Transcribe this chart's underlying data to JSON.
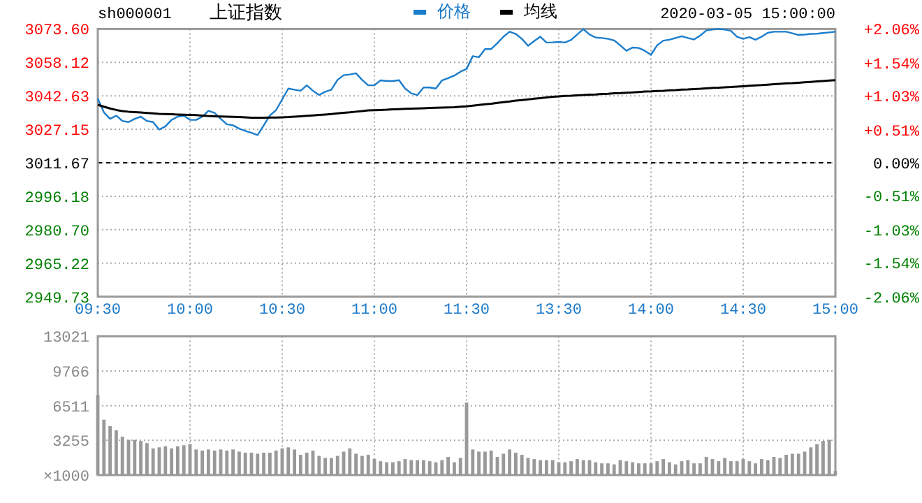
{
  "chart_data": [
    {
      "type": "line",
      "title": "上证指数",
      "subtitle": "sh000001",
      "annotations": [
        "2020-03-05 15:00:00"
      ],
      "legend": "top",
      "grid": true,
      "line_style": "solid",
      "categories": [
        "09:30",
        null,
        null,
        null,
        null,
        null,
        null,
        null,
        null,
        null,
        null,
        null,
        null,
        null,
        null,
        "10:00",
        null,
        null,
        null,
        null,
        null,
        null,
        null,
        null,
        null,
        null,
        null,
        null,
        null,
        null,
        "10:30",
        null,
        null,
        null,
        null,
        null,
        null,
        null,
        null,
        null,
        null,
        null,
        null,
        null,
        null,
        "11:00",
        null,
        null,
        null,
        null,
        null,
        null,
        null,
        null,
        null,
        null,
        null,
        null,
        null,
        null,
        "11:30",
        null,
        null,
        null,
        null,
        null,
        null,
        null,
        null,
        null,
        null,
        null,
        null,
        null,
        null,
        "13:30",
        null,
        null,
        null,
        null,
        null,
        null,
        null,
        null,
        null,
        null,
        null,
        null,
        null,
        null,
        "14:00",
        null,
        null,
        null,
        null,
        null,
        null,
        null,
        null,
        null,
        null,
        null,
        null,
        null,
        null,
        "14:30",
        null,
        null,
        null,
        null,
        null,
        null,
        null,
        null,
        null,
        null,
        null,
        null,
        null,
        null,
        "15:00"
      ],
      "ylim": [
        2949.73,
        3073.6
      ],
      "yticks": [
        2949.73,
        2965.22,
        {
          "value": 2980.7,
          "label": "2980.70"
        },
        2996.18,
        3011.67,
        3027.15,
        3042.63,
        3058.12,
        {
          "value": 3073.6,
          "label": "3073.60"
        }
      ],
      "y2lim": [
        -2.06,
        2.06
      ],
      "y2ticks": [
        {
          "value": -2.06,
          "label": "-2.06%"
        },
        {
          "value": -1.54,
          "label": "-1.54%"
        },
        {
          "value": -1.03,
          "label": "-1.03%"
        },
        {
          "value": -0.51,
          "label": "-0.51%"
        },
        {
          "value": 0,
          "label": "0.00%"
        },
        {
          "value": 0.51,
          "label": "+0.51%"
        },
        {
          "value": 1.03,
          "label": "+1.03%"
        },
        {
          "value": 1.54,
          "label": "+1.54%"
        },
        {
          "value": 2.06,
          "label": "+2.06%"
        }
      ],
      "ref_lines": [
        {
          "axis": "y",
          "value": 3011.67,
          "color": "#000000",
          "line_style": "dashed"
        }
      ],
      "series": [
        {
          "name": "价格",
          "color": "#1a7dcc",
          "values": [
            3041.3,
            3035.0,
            3032,
            3033.5,
            3031,
            3030.5,
            3032,
            3033,
            3031,
            3030.5,
            3027,
            3028.5,
            3031.5,
            3033,
            3033.5,
            3031.5,
            3031.5,
            3033,
            3035.7,
            3034.7,
            3032,
            3029.5,
            3029,
            3027.5,
            3026.4,
            3025.5,
            3024.5,
            3029,
            3033.5,
            3036,
            3041,
            3046,
            3045.5,
            3045,
            3047.5,
            3045,
            3043,
            3044.5,
            3045.5,
            3050,
            3052.2,
            3052.5,
            3053.1,
            3050,
            3047.5,
            3047.5,
            3049.8,
            3049.5,
            3049.5,
            3049.9,
            3046,
            3043.8,
            3043,
            3046.5,
            3046.5,
            3046,
            3049.8,
            3050.8,
            3052,
            3053.8,
            3055.1,
            3061,
            3060.5,
            3064.3,
            3064.3,
            3067,
            3070,
            3072.3,
            3071.3,
            3069,
            3065.8,
            3068,
            3070,
            3067.3,
            3067.4,
            3067.6,
            3067.3,
            3068.5,
            3071,
            3073.5,
            3071,
            3069.6,
            3069.4,
            3069,
            3068.3,
            3066,
            3063.5,
            3065,
            3064.8,
            3063.5,
            3061.6,
            3066,
            3068.2,
            3068.6,
            3069.4,
            3070.2,
            3069.4,
            3068.7,
            3070.5,
            3072.9,
            3073.3,
            3073.6,
            3073.3,
            3072.7,
            3070,
            3069,
            3069.8,
            3068.6,
            3070,
            3071.8,
            3072.3,
            3072.3,
            3072.3,
            3071.6,
            3070.8,
            3071,
            3071.3,
            3071.4,
            3071.7,
            3072,
            3072.3
          ]
        },
        {
          "name": "均线",
          "color": "#000000",
          "values": [
            3038.5,
            3037.6,
            3036.8,
            3036.1,
            3035.6,
            3035.3,
            3035.1,
            3034.9,
            3034.7,
            3034.5,
            3034.3,
            3034.2,
            3034.1,
            3034.0,
            3033.9,
            3033.8,
            3033.7,
            3033.5,
            3033.3,
            3033.2,
            3033.1,
            3033.0,
            3032.9,
            3032.8,
            3032.7,
            3032.5,
            3032.5,
            3032.5,
            3032.6,
            3032.6,
            3032.7,
            3032.8,
            3033.0,
            3033.2,
            3033.4,
            3033.6,
            3033.8,
            3034.0,
            3034.2,
            3034.5,
            3034.8,
            3035.0,
            3035.3,
            3035.6,
            3035.9,
            3036.0,
            3036.1,
            3036.2,
            3036.4,
            3036.5,
            3036.6,
            3036.7,
            3036.8,
            3036.9,
            3037.0,
            3037.1,
            3037.2,
            3037.3,
            3037.4,
            3037.6,
            3037.8,
            3038.1,
            3038.4,
            3038.7,
            3039.0,
            3039.4,
            3039.7,
            3040.0,
            3040.4,
            3040.7,
            3041.0,
            3041.3,
            3041.6,
            3041.9,
            3042.2,
            3042.4,
            3042.6,
            3042.7,
            3042.9,
            3043.0,
            3043.2,
            3043.3,
            3043.5,
            3043.6,
            3043.8,
            3043.9,
            3044.1,
            3044.2,
            3044.4,
            3044.6,
            3044.7,
            3044.9,
            3045.0,
            3045.2,
            3045.3,
            3045.5,
            3045.6,
            3045.8,
            3045.9,
            3046.1,
            3046.3,
            3046.4,
            3046.6,
            3046.7,
            3046.9,
            3047.1,
            3047.3,
            3047.5,
            3047.6,
            3047.8,
            3048.0,
            3048.2,
            3048.4,
            3048.5,
            3048.7,
            3048.9,
            3049.1,
            3049.3,
            3049.5,
            3049.7,
            3049.9
          ]
        }
      ]
    },
    {
      "type": "bar",
      "color": "#999999",
      "grid": true,
      "ylabel": "×1000",
      "categories": [
        null,
        null,
        null,
        null,
        null,
        null,
        null,
        null,
        null,
        null,
        null,
        null,
        null,
        null,
        null,
        null,
        null,
        null,
        null,
        null,
        null,
        null,
        null,
        null,
        null,
        null,
        null,
        null,
        null,
        null,
        null,
        null,
        null,
        null,
        null,
        null,
        null,
        null,
        null,
        null,
        null,
        null,
        null,
        null,
        null,
        null,
        null,
        null,
        null,
        null,
        null,
        null,
        null,
        null,
        null,
        null,
        null,
        null,
        null,
        null,
        null,
        null,
        null,
        null,
        null,
        null,
        null,
        null,
        null,
        null,
        null,
        null,
        null,
        null,
        null,
        null,
        null,
        null,
        null,
        null,
        null,
        null,
        null,
        null,
        null,
        null,
        null,
        null,
        null,
        null,
        null,
        null,
        null,
        null,
        null,
        null,
        null,
        null,
        null,
        null,
        null,
        null,
        null,
        null,
        null,
        null,
        null,
        null,
        null,
        null,
        null,
        null,
        null,
        null,
        null,
        null,
        null,
        null,
        null,
        null,
        null
      ],
      "ylim": [
        0,
        13021
      ],
      "yticks": [
        3255,
        6511,
        9766,
        13021
      ],
      "values": [
        7500,
        5200,
        4600,
        4200,
        3600,
        3300,
        3300,
        3200,
        3000,
        2500,
        2600,
        2700,
        2500,
        2700,
        2800,
        2900,
        2400,
        2300,
        2400,
        2300,
        2400,
        2300,
        2400,
        2200,
        2100,
        2100,
        2000,
        2100,
        2100,
        2300,
        2500,
        2600,
        2400,
        1900,
        2100,
        2300,
        1800,
        1600,
        1600,
        1800,
        2200,
        2500,
        2000,
        1800,
        1900,
        1500,
        1300,
        1200,
        1200,
        1300,
        1500,
        1400,
        1400,
        1400,
        1300,
        1200,
        1400,
        1700,
        1200,
        1600,
        6800,
        2400,
        2200,
        2200,
        2300,
        1700,
        2000,
        2400,
        2100,
        1900,
        1600,
        1500,
        1400,
        1400,
        1400,
        1200,
        1200,
        1300,
        1500,
        1400,
        1400,
        1200,
        1100,
        1100,
        1000,
        1400,
        1300,
        1200,
        1100,
        1100,
        1100,
        1300,
        1500,
        1200,
        1000,
        1300,
        1400,
        1100,
        1100,
        1700,
        1500,
        1300,
        1600,
        1300,
        1300,
        1500,
        1300,
        1100,
        1500,
        1400,
        1700,
        1600,
        1900,
        2000,
        2000,
        2200,
        2600,
        2900,
        3200,
        3300,
        400
      ]
    }
  ]
}
